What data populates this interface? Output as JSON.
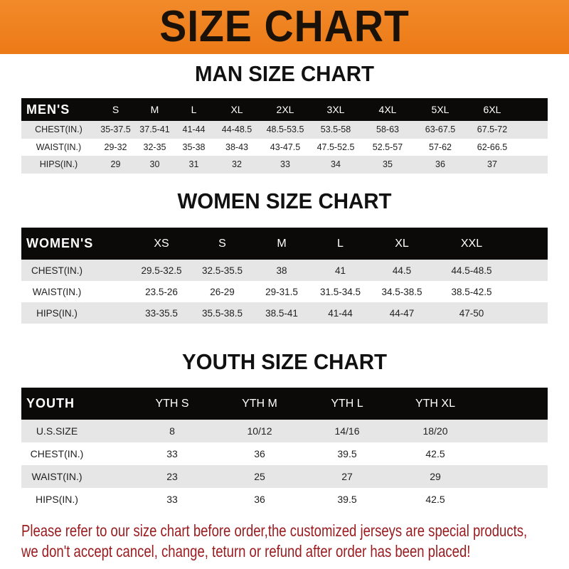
{
  "banner": {
    "title": "SIZE CHART",
    "color": "#ef8120"
  },
  "men": {
    "title": "MAN SIZE CHART",
    "header": [
      "MEN'S",
      "S",
      "M",
      "L",
      "XL",
      "2XL",
      "3XL",
      "4XL",
      "5XL",
      "6XL"
    ],
    "rows": [
      [
        "CHEST(IN.)",
        "35-37.5",
        "37.5-41",
        "41-44",
        "44-48.5",
        "48.5-53.5",
        "53.5-58",
        "58-63",
        "63-67.5",
        "67.5-72"
      ],
      [
        "WAIST(IN.)",
        "29-32",
        "32-35",
        "35-38",
        "38-43",
        "43-47.5",
        "47.5-52.5",
        "52.5-57",
        "57-62",
        "62-66.5"
      ],
      [
        "HIPS(IN.)",
        "29",
        "30",
        "31",
        "32",
        "33",
        "34",
        "35",
        "36",
        "37"
      ]
    ]
  },
  "women": {
    "title": "WOMEN SIZE CHART",
    "header": [
      "WOMEN'S",
      "XS",
      "S",
      "M",
      "L",
      "XL",
      "XXL"
    ],
    "rows": [
      [
        "CHEST(IN.)",
        "29.5-32.5",
        "32.5-35.5",
        "38",
        "41",
        "44.5",
        "44.5-48.5"
      ],
      [
        "WAIST(IN.)",
        "23.5-26",
        "26-29",
        "29-31.5",
        "31.5-34.5",
        "34.5-38.5",
        "38.5-42.5"
      ],
      [
        "HIPS(IN.)",
        "33-35.5",
        "35.5-38.5",
        "38.5-41",
        "41-44",
        "44-47",
        "47-50"
      ]
    ]
  },
  "youth": {
    "title": "YOUTH SIZE CHART",
    "header": [
      "YOUTH",
      "YTH S",
      "YTH M",
      "YTH L",
      "YTH XL"
    ],
    "rows": [
      [
        "U.S.SIZE",
        "8",
        "10/12",
        "14/16",
        "18/20"
      ],
      [
        "CHEST(IN.)",
        "33",
        "36",
        "39.5",
        "42.5"
      ],
      [
        "WAIST(IN.)",
        "23",
        "25",
        "27",
        "29"
      ],
      [
        "HIPS(IN.)",
        "33",
        "36",
        "39.5",
        "42.5"
      ]
    ]
  },
  "notice": {
    "line1": "Please refer to our size chart before order,the customized jerseys are special products,",
    "line2": "we don't accept cancel, change, teturn or refund after order has been placed!",
    "color": "#9a1b1e"
  }
}
